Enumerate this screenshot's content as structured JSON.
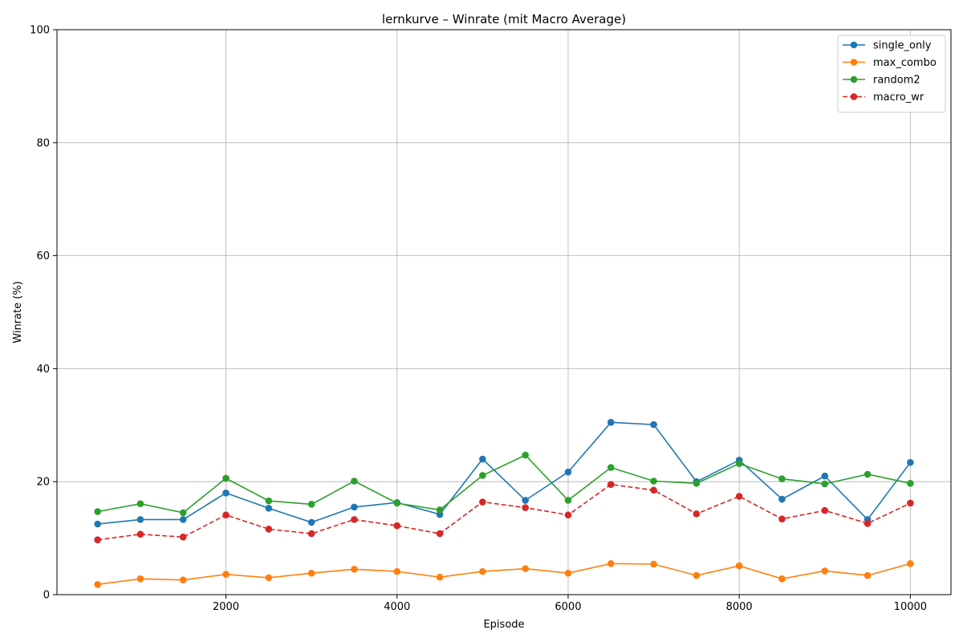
{
  "chart_data": {
    "type": "line",
    "title": "lernkurve – Winrate (mit Macro Average)",
    "xlabel": "Episode",
    "ylabel": "Winrate (%)",
    "xlim": [
      25,
      10475
    ],
    "ylim": [
      0,
      100
    ],
    "xticks": [
      2000,
      4000,
      6000,
      8000,
      10000
    ],
    "yticks": [
      0,
      20,
      40,
      60,
      80,
      100
    ],
    "grid": true,
    "legend_position": "top-right",
    "x": [
      500,
      1000,
      1500,
      2000,
      2500,
      3000,
      3500,
      4000,
      4500,
      5000,
      5500,
      6000,
      6500,
      7000,
      7500,
      8000,
      8500,
      9000,
      9500,
      10000
    ],
    "series": [
      {
        "name": "single_only",
        "color": "#1f77b4",
        "dashed": false,
        "values": [
          12.5,
          13.3,
          13.3,
          18.0,
          15.3,
          12.8,
          15.5,
          16.3,
          14.2,
          24.0,
          16.7,
          21.7,
          30.5,
          30.1,
          20.0,
          23.8,
          16.9,
          21.0,
          13.3,
          23.4
        ]
      },
      {
        "name": "max_combo",
        "color": "#ff7f0e",
        "dashed": false,
        "values": [
          1.8,
          2.8,
          2.6,
          3.6,
          3.0,
          3.8,
          4.5,
          4.1,
          3.1,
          4.1,
          4.6,
          3.8,
          5.5,
          5.4,
          3.4,
          5.1,
          2.8,
          4.2,
          3.4,
          5.5
        ]
      },
      {
        "name": "random2",
        "color": "#2ca02c",
        "dashed": false,
        "values": [
          14.7,
          16.1,
          14.5,
          20.6,
          16.6,
          16.0,
          20.1,
          16.2,
          15.0,
          21.1,
          24.7,
          16.7,
          22.5,
          20.1,
          19.7,
          23.2,
          20.5,
          19.6,
          21.3,
          19.7
        ]
      },
      {
        "name": "macro_wr",
        "color": "#d62728",
        "dashed": true,
        "values": [
          9.7,
          10.7,
          10.2,
          14.1,
          11.6,
          10.8,
          13.3,
          12.2,
          10.8,
          16.4,
          15.4,
          14.1,
          19.5,
          18.5,
          14.3,
          17.4,
          13.4,
          14.9,
          12.6,
          16.2
        ]
      }
    ]
  }
}
